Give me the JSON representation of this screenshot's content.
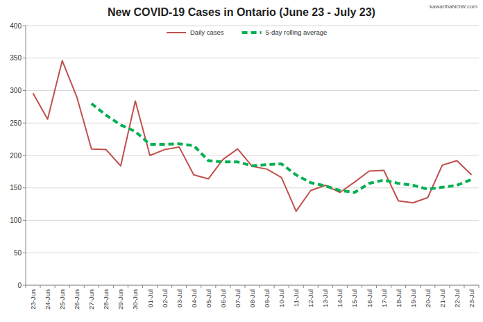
{
  "chart_data": {
    "type": "line",
    "title": "New COVID-19 Cases in Ontario (June 23 - July 23)",
    "annotations": [
      "kawarthaNOW.com"
    ],
    "categories": [
      "23-Jun",
      "24-Jun",
      "25-Jun",
      "26-Jun",
      "27-Jun",
      "28-Jun",
      "29-Jun",
      "30-Jun",
      "01-Jul",
      "02-Jul",
      "03-Jul",
      "04-Jul",
      "05-Jul",
      "06-Jul",
      "07-Jul",
      "08-Jul",
      "09-Jul",
      "10-Jul",
      "11-Jul",
      "12-Jul",
      "13-Jul",
      "14-Jul",
      "15-Jul",
      "16-Jul",
      "17-Jul",
      "18-Jul",
      "19-Jul",
      "20-Jul",
      "21-Jul",
      "22-Jul",
      "23-Jul"
    ],
    "series": [
      {
        "name": "Daily cases",
        "color": "#c0504d",
        "line_style": "solid",
        "values": [
          296,
          256,
          346,
          290,
          210,
          209,
          184,
          284,
          200,
          209,
          213,
          170,
          164,
          194,
          210,
          183,
          179,
          166,
          114,
          146,
          154,
          143,
          159,
          176,
          177,
          130,
          127,
          135,
          185,
          192,
          170
        ]
      },
      {
        "name": "5-day rolling average",
        "color": "#00b050",
        "line_style": "dashed",
        "values": [
          null,
          null,
          null,
          null,
          280,
          262,
          247,
          237,
          217,
          217,
          218,
          215,
          192,
          190,
          190,
          184,
          186,
          187,
          170,
          158,
          153,
          146,
          143,
          157,
          162,
          157,
          154,
          148,
          151,
          154,
          163
        ]
      }
    ],
    "ylim": [
      0,
      400
    ],
    "yticks": [
      0,
      50,
      100,
      150,
      200,
      250,
      300,
      350,
      400
    ],
    "grid": true,
    "legend": "top"
  }
}
